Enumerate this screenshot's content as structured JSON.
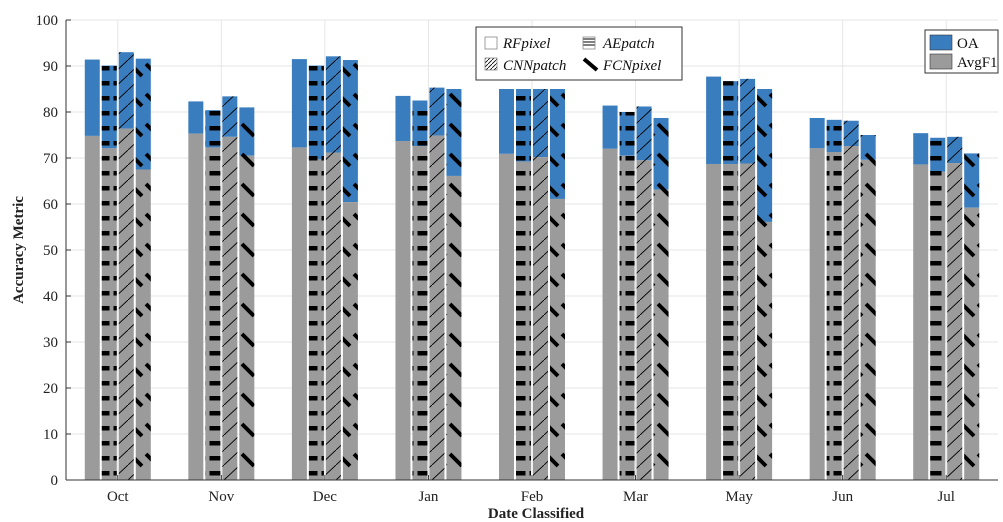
{
  "chart_data": {
    "type": "bar",
    "xlabel": "Date Classified",
    "ylabel": "Accuracy Metric",
    "ylim": [
      0,
      100
    ],
    "yticks": [
      0,
      10,
      20,
      30,
      40,
      50,
      60,
      70,
      80,
      90,
      100
    ],
    "grid": true,
    "categories": [
      "Oct",
      "Nov",
      "Dec",
      "Jan",
      "Feb",
      "Mar",
      "May",
      "Jun",
      "Jul"
    ],
    "methods": [
      {
        "name": "RFpixel",
        "pattern": "none"
      },
      {
        "name": "AEpatch",
        "pattern": "horizontal-dashes"
      },
      {
        "name": "CNNpatch",
        "pattern": "diagonal-lines"
      },
      {
        "name": "FCNpixel",
        "pattern": "thick-diagonal-dashes"
      }
    ],
    "series": [
      {
        "name": "OA",
        "values": [
          [
            91.4,
            90.1,
            93.0,
            91.6
          ],
          [
            82.3,
            80.4,
            83.4,
            81.0
          ],
          [
            91.5,
            90.1,
            92.1,
            91.3
          ],
          [
            83.5,
            82.5,
            85.3,
            85.0
          ],
          [
            85.0,
            85.0,
            85.0,
            85.0
          ],
          [
            81.4,
            80.0,
            81.2,
            78.7
          ],
          [
            87.7,
            86.7,
            87.2,
            85.0
          ],
          [
            78.7,
            78.3,
            78.1,
            75.0
          ],
          [
            75.4,
            74.4,
            74.6,
            71.0
          ]
        ]
      },
      {
        "name": "AvgF1",
        "values": [
          [
            74.8,
            72.1,
            76.4,
            67.5
          ],
          [
            75.3,
            72.3,
            74.6,
            70.5
          ],
          [
            72.3,
            69.7,
            71.2,
            60.4
          ],
          [
            73.7,
            72.6,
            74.9,
            66.1
          ],
          [
            70.9,
            69.2,
            70.2,
            61.1
          ],
          [
            72.0,
            70.5,
            69.5,
            63.1
          ],
          [
            68.7,
            68.7,
            68.8,
            56.1
          ],
          [
            72.1,
            71.3,
            72.6,
            69.6
          ],
          [
            68.6,
            67.0,
            68.9,
            59.2
          ]
        ]
      }
    ],
    "legend_methods_position": "top-center",
    "legend_metrics_position": "top-right"
  },
  "colors": {
    "oa": "#3a7dbf",
    "avgf1": "#9b9b9b",
    "grid": "#e6e6e6",
    "axis": "#333333"
  }
}
